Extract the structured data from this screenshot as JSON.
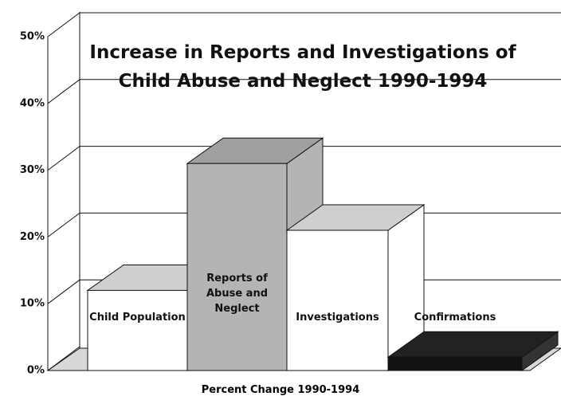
{
  "chart_data": {
    "type": "bar3d",
    "title": "Increase in Reports and Investigations of Child Abuse and Neglect 1990-1994",
    "x_label": "Percent Change 1990-1994",
    "categories": [
      "Child Population",
      "Reports of Abuse and Neglect",
      "Investigations",
      "Confirmations"
    ],
    "values": [
      12,
      31,
      21,
      2
    ],
    "colors": [
      "#ffffff",
      "#b4b4b4",
      "#ffffff",
      "#111111"
    ],
    "ylim": [
      0,
      50
    ],
    "yticks": [
      {
        "value": 0,
        "label": "0%"
      },
      {
        "value": 10,
        "label": "10%"
      },
      {
        "value": 20,
        "label": "20%"
      },
      {
        "value": 30,
        "label": "30%"
      },
      {
        "value": 40,
        "label": "40%"
      },
      {
        "value": 50,
        "label": "50%"
      }
    ],
    "grid": true
  }
}
